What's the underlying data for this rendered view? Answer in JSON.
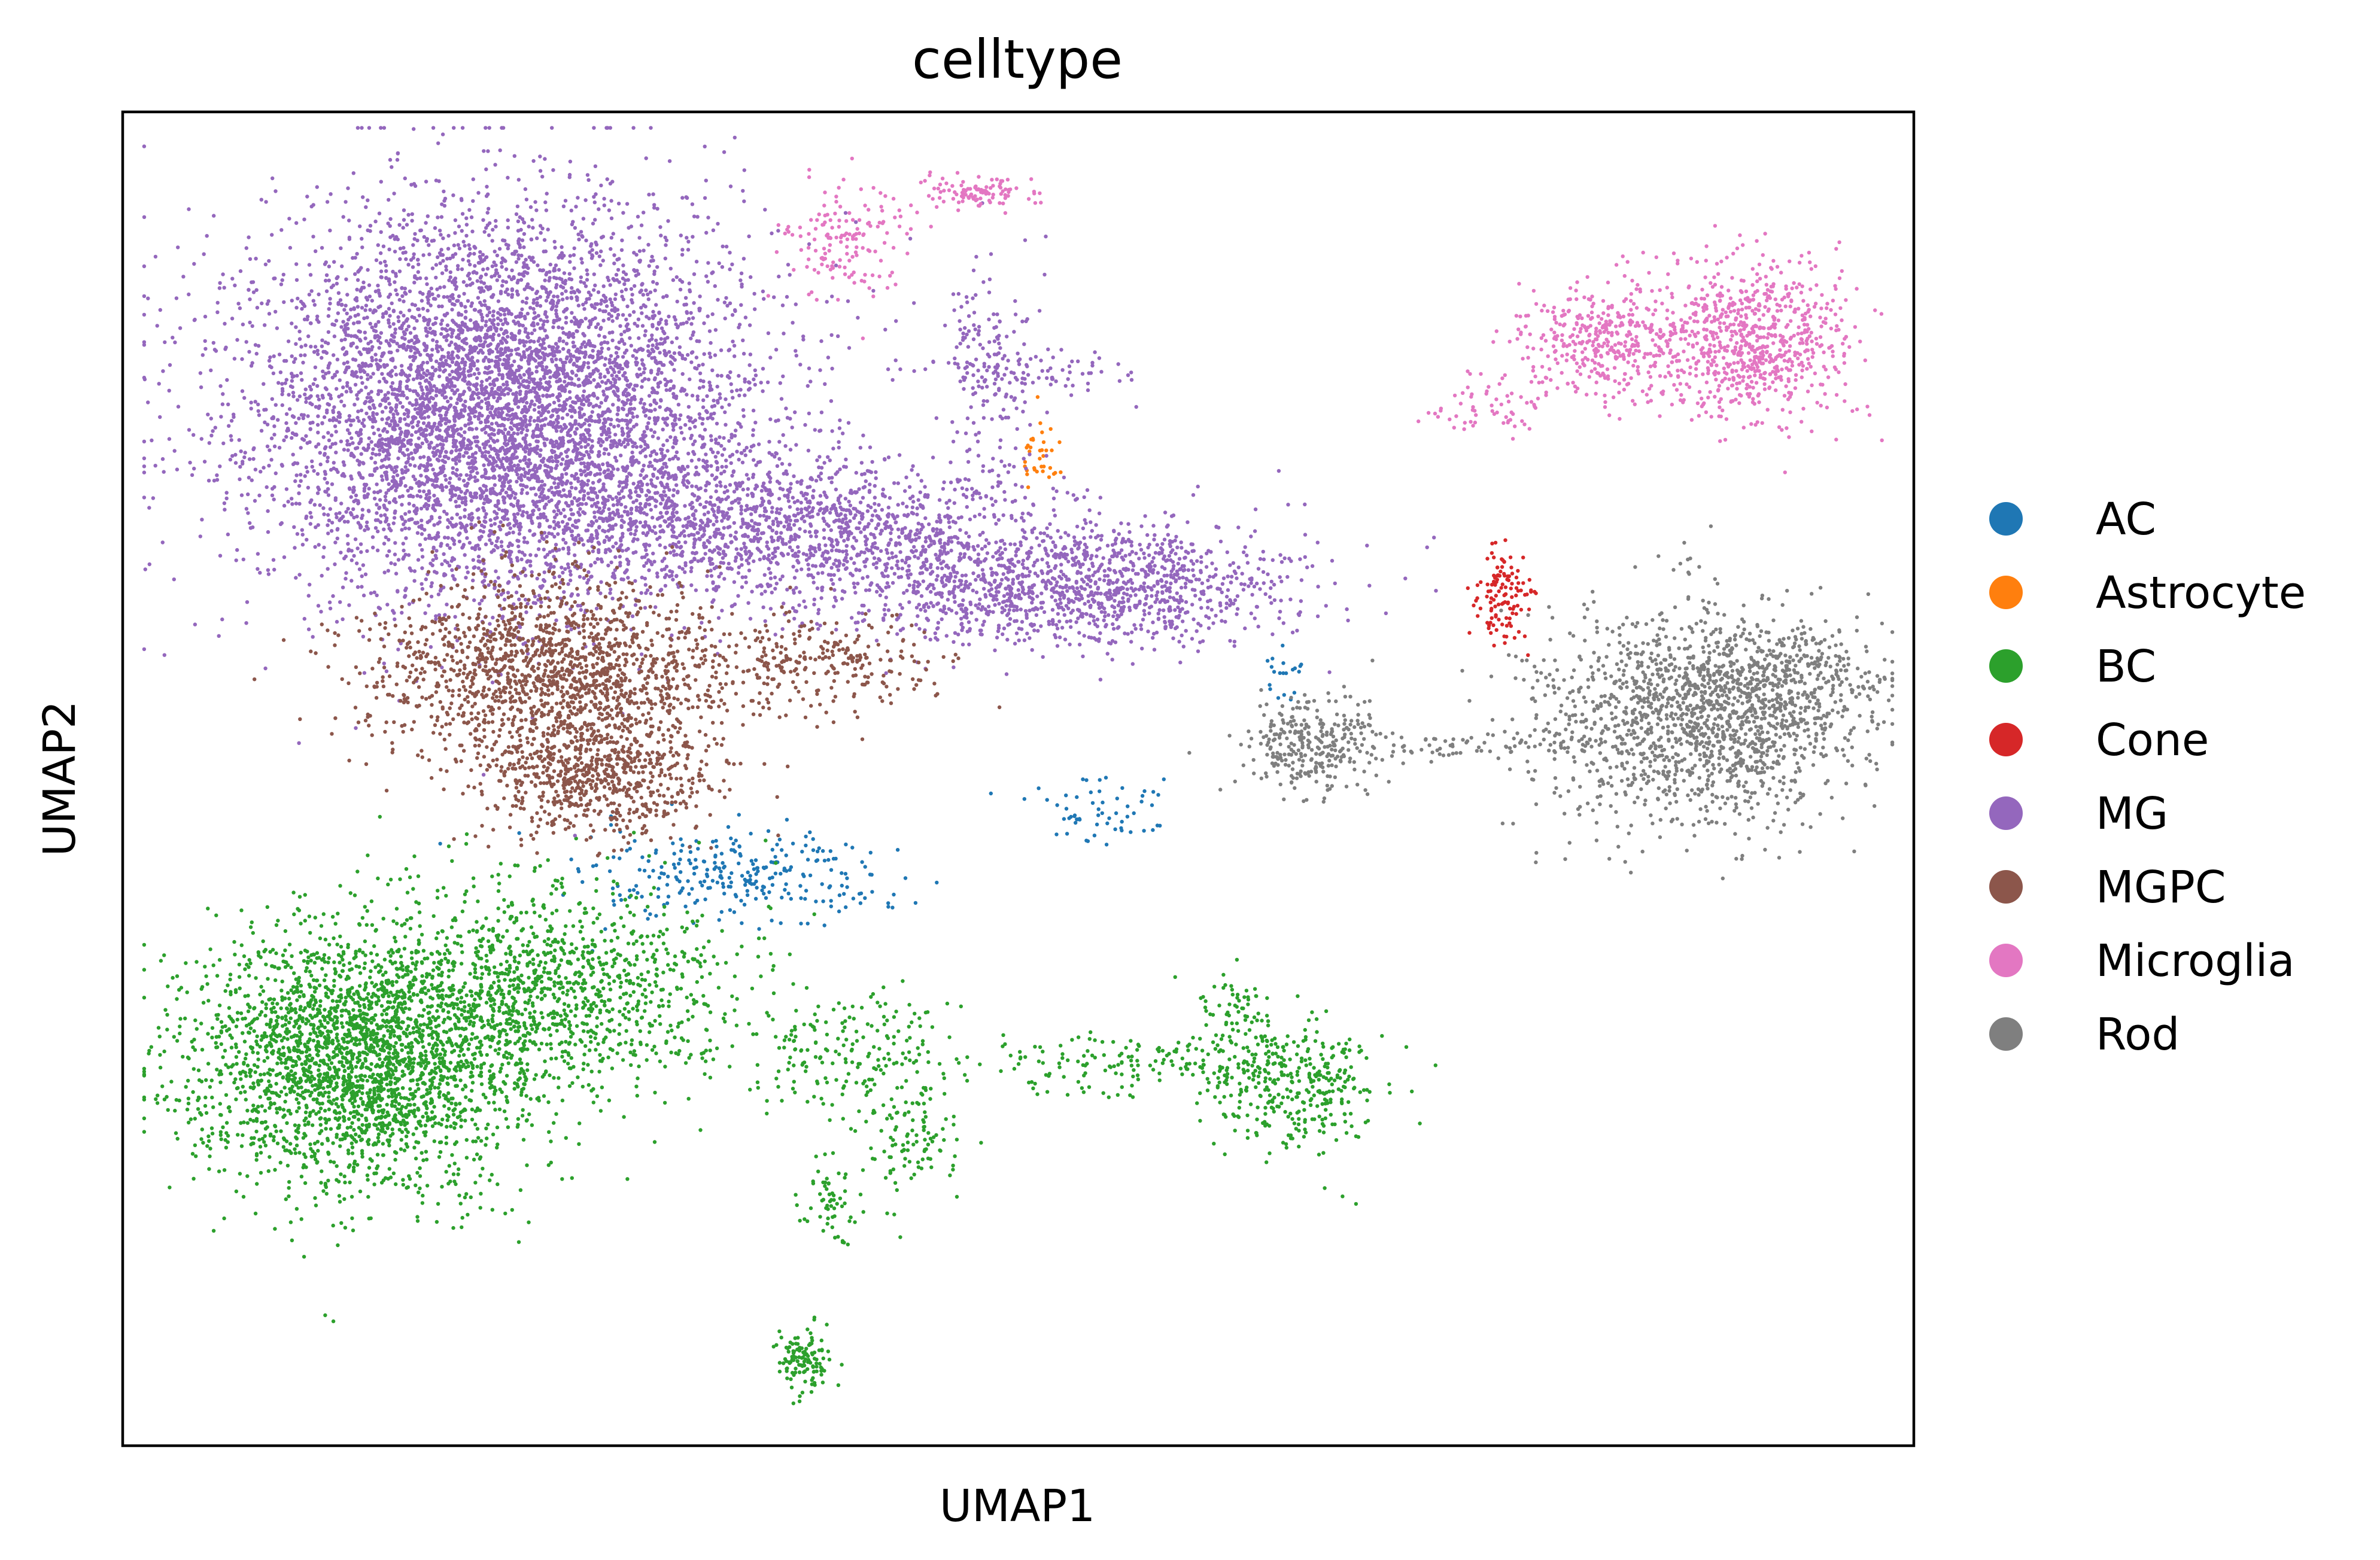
{
  "chart_data": {
    "type": "scatter",
    "title": "celltype",
    "xlabel": "UMAP1",
    "ylabel": "UMAP2",
    "xlim": [
      0,
      100
    ],
    "ylim": [
      0,
      100
    ],
    "grid": false,
    "ticks": false,
    "legend_position": "right",
    "point_color_note": "each point colored by cell type",
    "series": [
      {
        "name": "AC",
        "color": "#1f77b4",
        "clusters": [
          {
            "cx": 34.5,
            "cy": 42.5,
            "sx": 4.2,
            "sy": 1.8,
            "n": 280
          },
          {
            "cx": 54.2,
            "cy": 47.5,
            "sx": 1.8,
            "sy": 1.2,
            "n": 60
          },
          {
            "cx": 64.8,
            "cy": 58.5,
            "sx": 0.6,
            "sy": 1.2,
            "n": 20
          }
        ]
      },
      {
        "name": "Astrocyte",
        "color": "#ff7f0e",
        "clusters": [
          {
            "cx": 51.3,
            "cy": 74.0,
            "sx": 0.6,
            "sy": 1.4,
            "n": 35
          }
        ]
      },
      {
        "name": "BC",
        "color": "#2ca02c",
        "clusters": [
          {
            "cx": 13.0,
            "cy": 29.0,
            "sx": 4.5,
            "sy": 4.8,
            "n": 2600
          },
          {
            "cx": 24.0,
            "cy": 34.0,
            "sx": 5.2,
            "sy": 4.0,
            "n": 1200
          },
          {
            "cx": 40.5,
            "cy": 29.5,
            "sx": 2.8,
            "sy": 2.4,
            "n": 180
          },
          {
            "cx": 44.0,
            "cy": 23.5,
            "sx": 1.5,
            "sy": 2.2,
            "n": 110
          },
          {
            "cx": 39.5,
            "cy": 18.0,
            "sx": 0.9,
            "sy": 1.8,
            "n": 60
          },
          {
            "cx": 38.0,
            "cy": 6.5,
            "sx": 0.7,
            "sy": 1.1,
            "n": 120
          },
          {
            "cx": 57.0,
            "cy": 28.5,
            "sx": 5.5,
            "sy": 1.2,
            "n": 200
          },
          {
            "cx": 65.5,
            "cy": 27.0,
            "sx": 2.4,
            "sy": 2.4,
            "n": 320
          },
          {
            "cx": 62.0,
            "cy": 33.0,
            "sx": 1.2,
            "sy": 1.5,
            "n": 60
          }
        ]
      },
      {
        "name": "Cone",
        "color": "#d62728",
        "clusters": [
          {
            "cx": 77.0,
            "cy": 64.0,
            "sx": 0.8,
            "sy": 2.0,
            "n": 120
          }
        ]
      },
      {
        "name": "MG",
        "color": "#9467bd",
        "clusters": [
          {
            "cx": 21.0,
            "cy": 78.0,
            "sx": 7.0,
            "sy": 7.2,
            "n": 6200
          },
          {
            "cx": 37.0,
            "cy": 69.0,
            "sx": 7.5,
            "sy": 2.6,
            "n": 1400
          },
          {
            "cx": 52.5,
            "cy": 64.5,
            "sx": 7.0,
            "sy": 2.3,
            "n": 1400
          },
          {
            "cx": 48.5,
            "cy": 80.5,
            "sx": 1.5,
            "sy": 4.0,
            "n": 150
          },
          {
            "cx": 50.5,
            "cy": 80.5,
            "sx": 3.0,
            "sy": 0.8,
            "n": 90
          }
        ]
      },
      {
        "name": "MGPC",
        "color": "#8c564b",
        "clusters": [
          {
            "cx": 24.0,
            "cy": 58.0,
            "sx": 5.0,
            "sy": 3.5,
            "n": 1600
          },
          {
            "cx": 26.5,
            "cy": 50.5,
            "sx": 3.2,
            "sy": 2.5,
            "n": 700
          },
          {
            "cx": 39.0,
            "cy": 58.5,
            "sx": 3.5,
            "sy": 1.8,
            "n": 260
          }
        ]
      },
      {
        "name": "Microglia",
        "color": "#e377c2",
        "clusters": [
          {
            "cx": 40.5,
            "cy": 90.5,
            "sx": 1.8,
            "sy": 2.0,
            "n": 150
          },
          {
            "cx": 47.5,
            "cy": 94.0,
            "sx": 1.8,
            "sy": 0.6,
            "n": 100
          },
          {
            "cx": 82.5,
            "cy": 82.5,
            "sx": 2.3,
            "sy": 2.0,
            "n": 350
          },
          {
            "cx": 90.5,
            "cy": 83.0,
            "sx": 2.8,
            "sy": 3.0,
            "n": 800
          },
          {
            "cx": 76.0,
            "cy": 78.0,
            "sx": 1.8,
            "sy": 1.2,
            "n": 60
          }
        ]
      },
      {
        "name": "Rod",
        "color": "#7f7f7f",
        "clusters": [
          {
            "cx": 66.5,
            "cy": 52.5,
            "sx": 2.0,
            "sy": 1.8,
            "n": 300
          },
          {
            "cx": 75.5,
            "cy": 52.5,
            "sx": 4.5,
            "sy": 0.6,
            "n": 80
          },
          {
            "cx": 88.0,
            "cy": 54.5,
            "sx": 4.5,
            "sy": 4.0,
            "n": 1500
          },
          {
            "cx": 93.0,
            "cy": 57.5,
            "sx": 2.5,
            "sy": 2.2,
            "n": 300
          }
        ]
      }
    ]
  }
}
